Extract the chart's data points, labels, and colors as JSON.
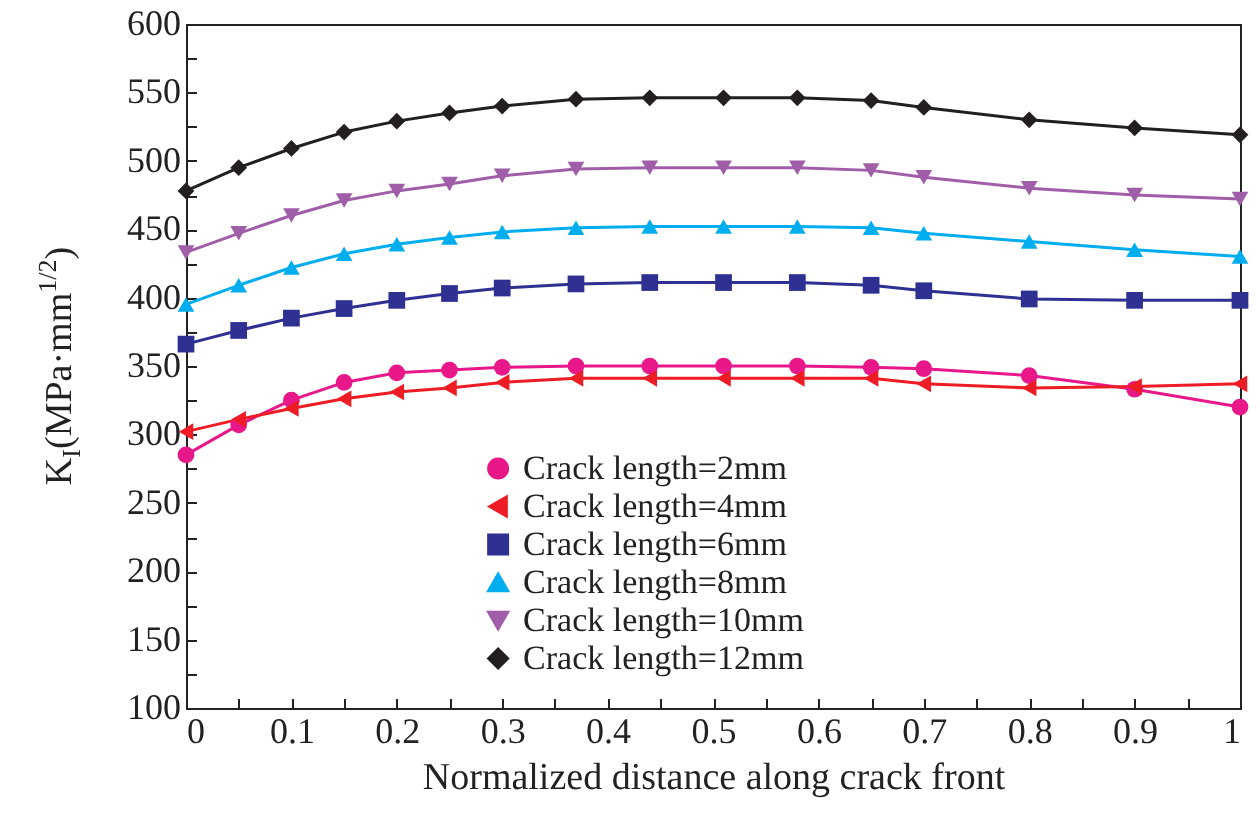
{
  "chart_data": {
    "type": "line",
    "xlabel": "Normalized distance along crack front",
    "ylabel": "K$_{I}$(MPa·mm$^{1/2}$)",
    "x": [
      0,
      0.05,
      0.1,
      0.15,
      0.2,
      0.25,
      0.3,
      0.37,
      0.44,
      0.51,
      0.58,
      0.65,
      0.7,
      0.8,
      0.9,
      1
    ],
    "xlim": [
      0,
      1
    ],
    "xticks": [
      0,
      {
        "value": 0.05,
        "label": null
      },
      0.1,
      {
        "value": 0.15,
        "label": null
      },
      0.2,
      {
        "value": 0.25,
        "label": null
      },
      0.3,
      {
        "value": 0.35,
        "label": null
      },
      0.4,
      {
        "value": 0.45,
        "label": null
      },
      0.5,
      {
        "value": 0.55,
        "label": null
      },
      0.6,
      {
        "value": 0.65,
        "label": null
      },
      0.7,
      {
        "value": 0.75,
        "label": null
      },
      0.8,
      {
        "value": 0.85,
        "label": null
      },
      0.9,
      {
        "value": 0.95,
        "label": null
      },
      1
    ],
    "ylim": [
      100,
      600
    ],
    "yticks": [
      100,
      {
        "value": 125,
        "label": null
      },
      150,
      {
        "value": 175,
        "label": null
      },
      200,
      {
        "value": 225,
        "label": null
      },
      250,
      {
        "value": 275,
        "label": null
      },
      300,
      {
        "value": 325,
        "label": null
      },
      350,
      {
        "value": 375,
        "label": null
      },
      400,
      {
        "value": 425,
        "label": null
      },
      450,
      {
        "value": 475,
        "label": null
      },
      500,
      {
        "value": 525,
        "label": null
      },
      550,
      {
        "value": 575,
        "label": null
      },
      600
    ],
    "legend": "bottom",
    "grid": false,
    "series": [
      {
        "name": "Crack length=2mm",
        "color": "#e8178a",
        "marker": "circle",
        "values": [
          285,
          307,
          325,
          338,
          345,
          347,
          349,
          350,
          350,
          350,
          350,
          349,
          348,
          343,
          333,
          320
        ]
      },
      {
        "name": "Crack length=4mm",
        "color": "#ee1c25",
        "marker": "triangle-left",
        "values": [
          302,
          311,
          319,
          326,
          331,
          334,
          338,
          341,
          341,
          341,
          341,
          341,
          337,
          334,
          335,
          337
        ]
      },
      {
        "name": "Crack length=6mm",
        "color": "#2e3192",
        "marker": "square",
        "values": [
          366,
          376,
          385,
          392,
          398,
          403,
          407,
          410,
          411,
          411,
          411,
          409,
          405,
          399,
          398,
          398
        ]
      },
      {
        "name": "Crack length=8mm",
        "color": "#00aeef",
        "marker": "triangle-up",
        "values": [
          395,
          409,
          422,
          432,
          439,
          444,
          448,
          451,
          452,
          452,
          452,
          451,
          447,
          441,
          435,
          430
        ]
      },
      {
        "name": "Crack length=10mm",
        "color": "#a05ea8",
        "marker": "triangle-down",
        "values": [
          433,
          447,
          460,
          471,
          478,
          483,
          489,
          494,
          495,
          495,
          495,
          493,
          488,
          480,
          475,
          472
        ]
      },
      {
        "name": "Crack length=12mm",
        "color": "#231f20",
        "marker": "diamond",
        "values": [
          478,
          495,
          509,
          521,
          529,
          535,
          540,
          545,
          546,
          546,
          546,
          544,
          539,
          530,
          524,
          519
        ]
      }
    ]
  }
}
